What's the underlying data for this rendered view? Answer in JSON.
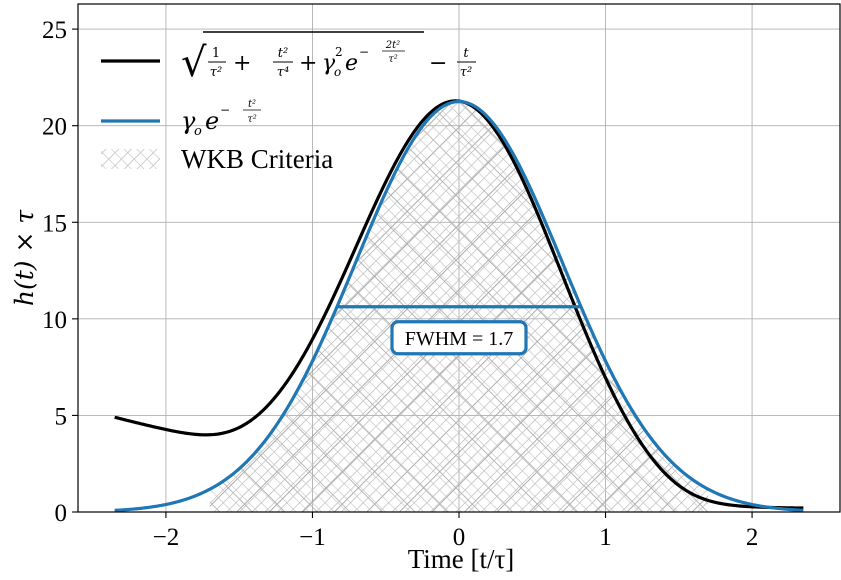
{
  "chart_data": {
    "type": "line",
    "xlabel": "Time [t/τ]",
    "ylabel": "h(t) × τ",
    "xlim": [
      -2.6,
      2.6
    ],
    "ylim": [
      0,
      26.3
    ],
    "xticks": [
      -2,
      -1,
      0,
      1,
      2
    ],
    "xtick_labels": [
      "−2",
      "−1",
      "0",
      "1",
      "2"
    ],
    "yticks": [
      0,
      5,
      10,
      15,
      20,
      25
    ],
    "ytick_labels": [
      "0",
      "5",
      "10",
      "15",
      "20",
      "25"
    ],
    "grid": true,
    "legend_placement": "top-left",
    "params": {
      "gamma_o": 21.25,
      "tau": 1.0
    },
    "series": [
      {
        "name": "√(1/τ² + t²/τ⁴ + γo² e^(−2t²/τ²)) − t/τ²",
        "color": "#000000",
        "kind": "sqrt_expr",
        "x_range": [
          -2.35,
          2.35
        ],
        "x": [
          -2.35,
          -2.0,
          -1.7,
          -1.5,
          -1.2,
          -1.0,
          -0.8,
          -0.5,
          -0.2,
          0.0,
          0.2,
          0.5,
          0.8,
          1.0,
          1.2,
          1.5,
          2.0,
          2.35
        ],
        "y": [
          4.91,
          4.24,
          4.02,
          4.25,
          6.0,
          8.16,
          11.21,
          16.95,
          20.67,
          21.27,
          20.46,
          15.97,
          9.62,
          6.17,
          3.58,
          1.32,
          0.24,
          0.18
        ]
      },
      {
        "name": "γo e^(−t²/τ²)",
        "color": "#1f77b4",
        "kind": "gaussian",
        "x_range": [
          -2.35,
          2.35
        ],
        "x": [
          -2.35,
          -2.0,
          -1.5,
          -1.0,
          -0.8,
          -0.5,
          0.0,
          0.5,
          0.8,
          1.0,
          1.5,
          2.0,
          2.35
        ],
        "y": [
          0.08,
          0.39,
          2.24,
          7.82,
          11.21,
          16.55,
          21.25,
          16.55,
          11.21,
          7.82,
          2.24,
          0.39,
          0.08
        ]
      }
    ],
    "hatch_region": {
      "name": "WKB Criteria",
      "x_range": [
        -1.7,
        1.7
      ],
      "under": "gaussian"
    },
    "annotation": {
      "text": "FWHM = 1.7",
      "fwhm": 1.67,
      "level": 10.625,
      "color": "#1f77b4"
    }
  }
}
